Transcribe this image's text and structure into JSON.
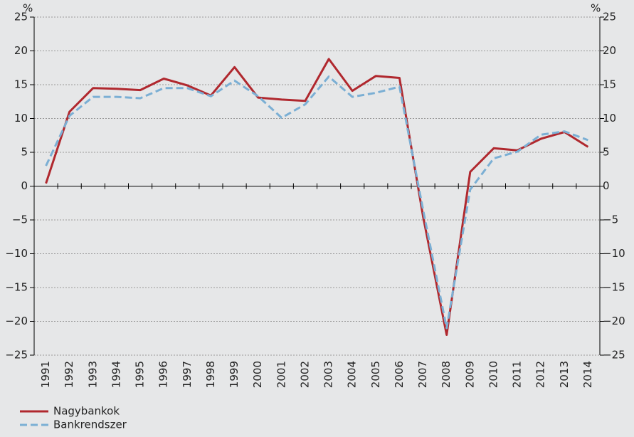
{
  "chart_data": {
    "type": "line",
    "y_unit": "%",
    "y2_unit": "%",
    "categories": [
      "1991",
      "1992",
      "1993",
      "1994",
      "1995",
      "1996",
      "1997",
      "1998",
      "1999",
      "2000",
      "2001",
      "2002",
      "2003",
      "2004",
      "2005",
      "2006",
      "2007",
      "2008",
      "2009",
      "2010",
      "2011",
      "2012",
      "2013",
      "2014"
    ],
    "series": [
      {
        "name": "Nagybankok",
        "color": "#b0282e",
        "dash": false,
        "values": [
          0.4,
          11,
          14.5,
          14.4,
          14.2,
          15.9,
          14.9,
          13.4,
          17.6,
          13.1,
          12.8,
          12.6,
          18.8,
          14.1,
          16.3,
          16.0,
          -4.5,
          -22,
          2.1,
          5.6,
          5.3,
          7.0,
          8.0,
          5.8
        ]
      },
      {
        "name": "Bankrendszer",
        "color": "#7bafd4",
        "dash": true,
        "values": [
          3,
          10.4,
          13.2,
          13.2,
          13.0,
          14.5,
          14.5,
          13.3,
          15.6,
          13.3,
          10.1,
          12.1,
          16.2,
          13.2,
          13.8,
          14.7,
          -3.5,
          -21,
          -0.5,
          4.1,
          5.1,
          7.6,
          8.1,
          6.8
        ]
      }
    ],
    "ylim": [
      -25,
      25
    ],
    "yticks": [
      {
        "value": -25,
        "label": "−25"
      },
      {
        "value": -20,
        "label": "−20"
      },
      {
        "value": -15,
        "label": "−15"
      },
      {
        "value": -10,
        "label": "−10"
      },
      {
        "value": -5,
        "label": "−5"
      },
      0,
      5,
      10,
      15,
      20,
      25
    ],
    "y2lim": [
      -25,
      25
    ],
    "y2ticks": [
      {
        "value": -25,
        "label": "−25"
      },
      {
        "value": -20,
        "label": "−20"
      },
      {
        "value": -15,
        "label": "−15"
      },
      {
        "value": -10,
        "label": "−10"
      },
      {
        "value": -5,
        "label": "−5"
      },
      0,
      5,
      10,
      15,
      20,
      25
    ],
    "grid": true,
    "legend": "bottom-left"
  }
}
